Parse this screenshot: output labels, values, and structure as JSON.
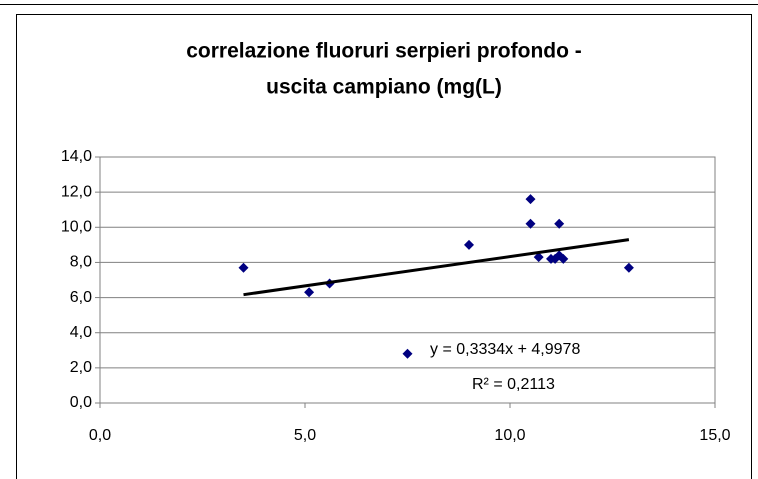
{
  "chart_data": {
    "type": "scatter",
    "title": [
      "correlazione fluoruri serpieri profondo -",
      "uscita campiano (mg(L)"
    ],
    "series": [
      {
        "color": "#000080",
        "x": [
          3.5,
          5.1,
          5.6,
          7.5,
          9.0,
          10.5,
          10.5,
          10.7,
          11.0,
          11.1,
          11.2,
          11.2,
          11.3,
          12.9
        ],
        "values": [
          7.7,
          6.3,
          6.8,
          2.8,
          9.0,
          11.6,
          10.2,
          8.3,
          8.2,
          8.2,
          10.2,
          8.4,
          8.2,
          7.7
        ]
      }
    ],
    "trendline": {
      "slope": 0.3334,
      "intercept": 4.9978,
      "color": "#000000",
      "equation": "y = 0,3334x + 4,9978",
      "r_squared": "R² = 0,2113"
    },
    "xlim": [
      0,
      15
    ],
    "xticks": [
      {
        "value": 0,
        "label": "0,0"
      },
      {
        "value": 5,
        "label": "5,0"
      },
      {
        "value": 10,
        "label": "10,0"
      },
      {
        "value": 15,
        "label": "15,0"
      }
    ],
    "ylim": [
      0,
      14
    ],
    "yticks": [
      {
        "value": 0,
        "label": "0,0"
      },
      {
        "value": 2,
        "label": "2,0"
      },
      {
        "value": 4,
        "label": "4,0"
      },
      {
        "value": 6,
        "label": "6,0"
      },
      {
        "value": 8,
        "label": "8,0"
      },
      {
        "value": 10,
        "label": "10,0"
      },
      {
        "value": 12,
        "label": "12,0"
      },
      {
        "value": 14,
        "label": "14,0"
      }
    ],
    "grid": true
  }
}
